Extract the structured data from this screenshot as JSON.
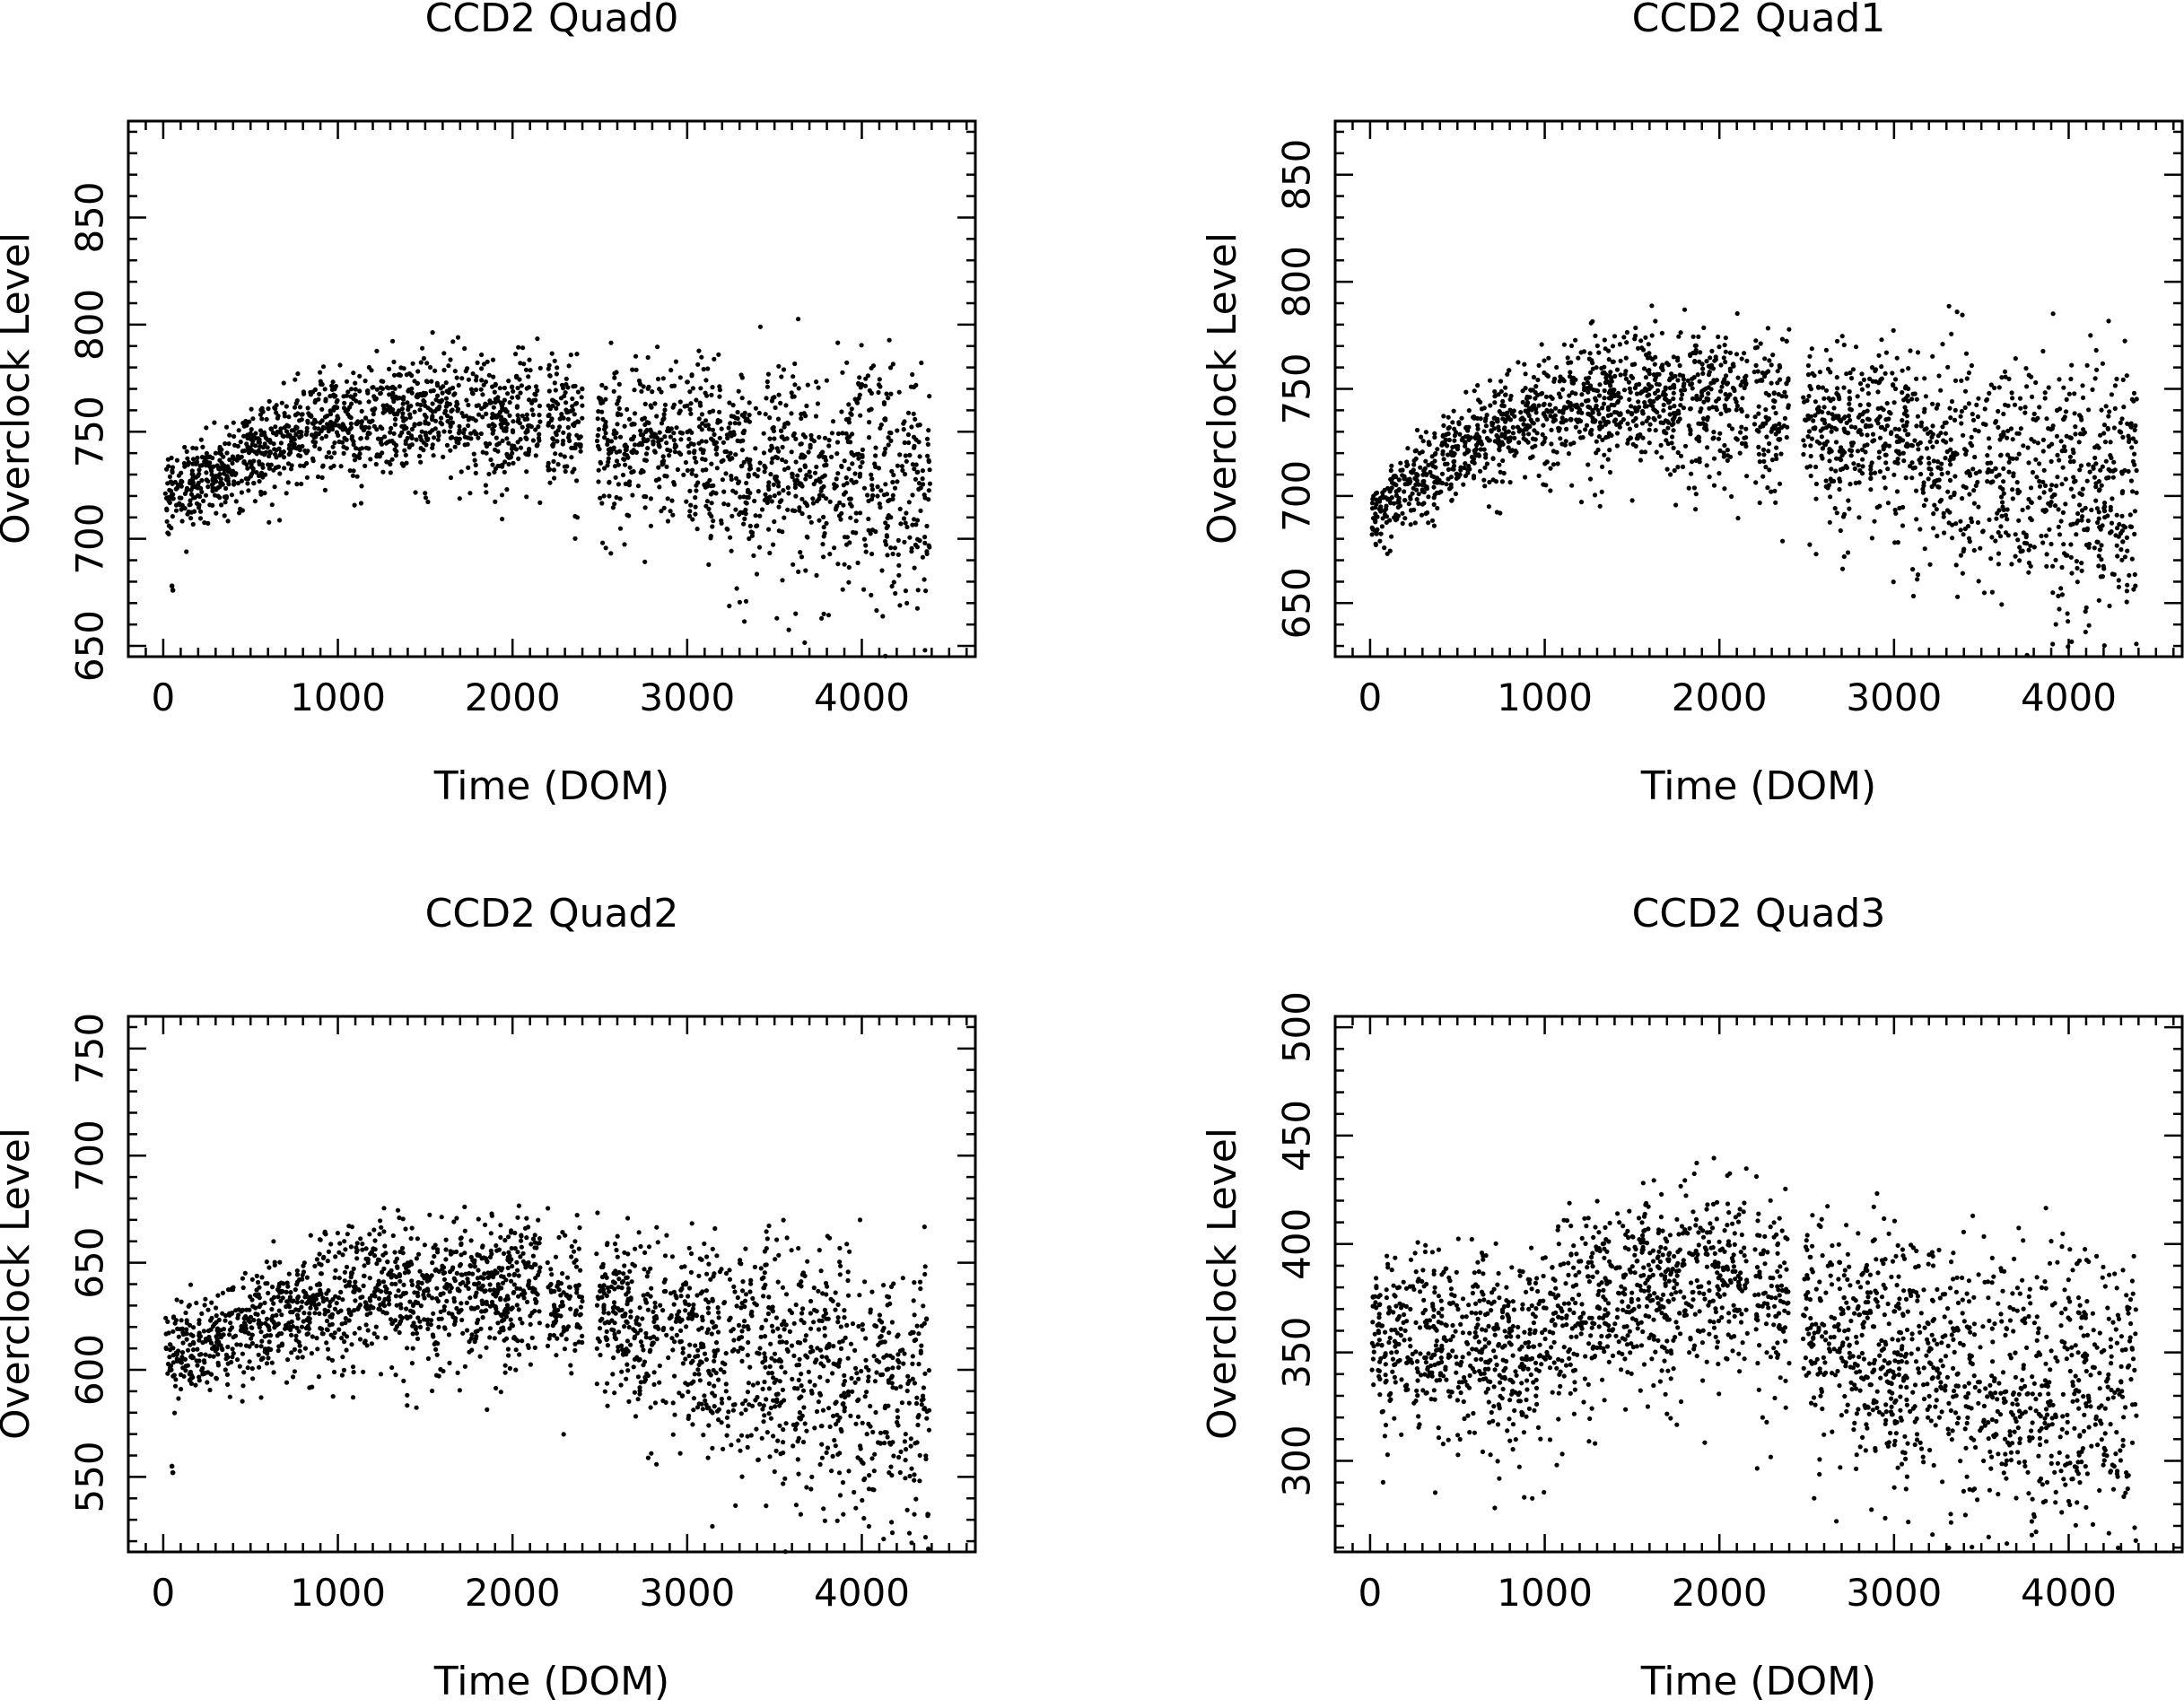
{
  "chart_data": [
    {
      "type": "scatter",
      "title": "CCD2 Quad0",
      "xlabel": "Time (DOM)",
      "ylabel": "Overclock Level",
      "xlim": [
        -200,
        4650
      ],
      "ylim": [
        645,
        895
      ],
      "xticks": [
        0,
        1000,
        2000,
        3000,
        4000
      ],
      "xtick_labels": [
        "0",
        "1000",
        "2000",
        "3000",
        "4000"
      ],
      "yticks": [
        650,
        700,
        750,
        800,
        850
      ],
      "ytick_labels": [
        "650",
        "700",
        "750",
        "800",
        "850"
      ],
      "x_gaps": [
        [
          2160,
          2200
        ],
        [
          2400,
          2480
        ]
      ],
      "trend": [
        [
          0,
          722
        ],
        [
          300,
          730
        ],
        [
          600,
          745
        ],
        [
          1000,
          755
        ],
        [
          1500,
          760
        ],
        [
          2100,
          760
        ],
        [
          2500,
          750
        ],
        [
          3000,
          745
        ],
        [
          3500,
          738
        ],
        [
          4000,
          730
        ],
        [
          4400,
          728
        ]
      ],
      "spread": [
        [
          0,
          12
        ],
        [
          1500,
          20
        ],
        [
          2500,
          22
        ],
        [
          3500,
          35
        ],
        [
          4400,
          45
        ]
      ],
      "outliers": [
        {
          "x": 50,
          "y": 678
        },
        {
          "x": 55,
          "y": 676
        }
      ]
    },
    {
      "type": "scatter",
      "title": "CCD2 Quad1",
      "xlabel": "Time (DOM)",
      "ylabel": "Overclock Level",
      "xlim": [
        -200,
        4650
      ],
      "ylim": [
        625,
        875
      ],
      "xticks": [
        0,
        1000,
        2000,
        3000,
        4000
      ],
      "xtick_labels": [
        "0",
        "1000",
        "2000",
        "3000",
        "4000"
      ],
      "yticks": [
        650,
        700,
        750,
        800,
        850
      ],
      "ytick_labels": [
        "650",
        "700",
        "750",
        "800",
        "850"
      ],
      "x_gaps": [
        [
          2160,
          2200
        ],
        [
          2400,
          2480
        ]
      ],
      "trend": [
        [
          0,
          690
        ],
        [
          300,
          710
        ],
        [
          600,
          728
        ],
        [
          1000,
          740
        ],
        [
          1500,
          748
        ],
        [
          2100,
          745
        ],
        [
          2500,
          735
        ],
        [
          3000,
          725
        ],
        [
          3500,
          715
        ],
        [
          4000,
          705
        ],
        [
          4400,
          700
        ]
      ],
      "spread": [
        [
          0,
          12
        ],
        [
          1500,
          22
        ],
        [
          2500,
          25
        ],
        [
          3500,
          40
        ],
        [
          4400,
          50
        ]
      ],
      "outliers": []
    },
    {
      "type": "scatter",
      "title": "CCD2 Quad2",
      "xlabel": "Time (DOM)",
      "ylabel": "Overclock Level",
      "xlim": [
        -200,
        4650
      ],
      "ylim": [
        515,
        765
      ],
      "xticks": [
        0,
        1000,
        2000,
        3000,
        4000
      ],
      "xtick_labels": [
        "0",
        "1000",
        "2000",
        "3000",
        "4000"
      ],
      "yticks": [
        550,
        600,
        650,
        700,
        750
      ],
      "ytick_labels": [
        "550",
        "600",
        "650",
        "700",
        "750"
      ],
      "x_gaps": [
        [
          2160,
          2200
        ],
        [
          2400,
          2480
        ]
      ],
      "trend": [
        [
          0,
          608
        ],
        [
          300,
          615
        ],
        [
          600,
          625
        ],
        [
          1000,
          635
        ],
        [
          1500,
          640
        ],
        [
          2100,
          638
        ],
        [
          2500,
          628
        ],
        [
          3000,
          618
        ],
        [
          3500,
          605
        ],
        [
          4000,
          595
        ],
        [
          4400,
          592
        ]
      ],
      "spread": [
        [
          0,
          14
        ],
        [
          1500,
          24
        ],
        [
          2500,
          26
        ],
        [
          3500,
          40
        ],
        [
          4400,
          50
        ]
      ],
      "outliers": [
        {
          "x": 50,
          "y": 555
        },
        {
          "x": 55,
          "y": 552
        }
      ]
    },
    {
      "type": "scatter",
      "title": "CCD2 Quad3",
      "xlabel": "Time (DOM)",
      "ylabel": "Overclock Level",
      "xlim": [
        -200,
        4650
      ],
      "ylim": [
        258,
        505
      ],
      "xticks": [
        0,
        1000,
        2000,
        3000,
        4000
      ],
      "xtick_labels": [
        "0",
        "1000",
        "2000",
        "3000",
        "4000"
      ],
      "yticks": [
        300,
        350,
        400,
        450,
        500
      ],
      "ytick_labels": [
        "300",
        "350",
        "400",
        "450",
        "500"
      ],
      "x_gaps": [
        [
          2160,
          2200
        ],
        [
          2400,
          2480
        ]
      ],
      "trend": [
        [
          0,
          360
        ],
        [
          500,
          355
        ],
        [
          800,
          350
        ],
        [
          1200,
          370
        ],
        [
          1500,
          380
        ],
        [
          2100,
          385
        ],
        [
          2500,
          370
        ],
        [
          3000,
          350
        ],
        [
          3500,
          340
        ],
        [
          4000,
          330
        ],
        [
          4400,
          330
        ]
      ],
      "spread": [
        [
          0,
          28
        ],
        [
          1500,
          32
        ],
        [
          2500,
          35
        ],
        [
          3500,
          45
        ],
        [
          4400,
          50
        ]
      ],
      "outliers": []
    }
  ]
}
